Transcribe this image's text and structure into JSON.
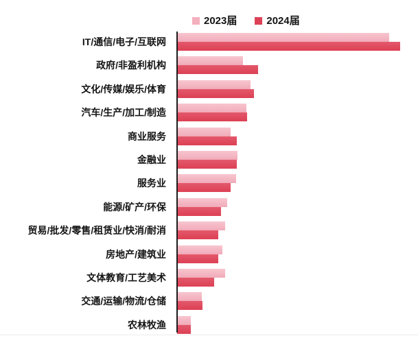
{
  "legend": [
    {
      "label": "2023届",
      "color": "#f3b0bd"
    },
    {
      "label": "2024届",
      "color": "#dd4156"
    }
  ],
  "chart_data": {
    "type": "bar",
    "orientation": "horizontal",
    "title": "",
    "xlabel": "",
    "ylabel": "",
    "grid": false,
    "legend_position": "top",
    "value_unit": "relative length, max bar = 100 (no numeric axis shown)",
    "xlim": [
      0,
      100
    ],
    "categories": [
      "IT/通信/电子/互联网",
      "政府/非盈利机构",
      "文化/传媒/娱乐/体育",
      "汽车/生产/加工/制造",
      "商业服务",
      "金融业",
      "服务业",
      "能源/矿产/环保",
      "贸易/批发/零售/租赁业/快消/耐消",
      "房地产/建筑业",
      "文体教育/工艺美术",
      "交通/运输/物流/仓储",
      "农林牧渔"
    ],
    "series": [
      {
        "name": "2023届",
        "color": "#f3b0bd",
        "values": [
          95.1,
          29.5,
          32.9,
          31.1,
          24.0,
          27.1,
          26.5,
          22.5,
          21.5,
          20.3,
          21.5,
          11.1,
          6.2
        ]
      },
      {
        "name": "2024届",
        "color": "#dd4156",
        "values": [
          100,
          36.3,
          34.5,
          31.4,
          26.8,
          26.8,
          24.0,
          19.7,
          18.5,
          18.5,
          16.6,
          11.4,
          6.2
        ]
      }
    ]
  }
}
